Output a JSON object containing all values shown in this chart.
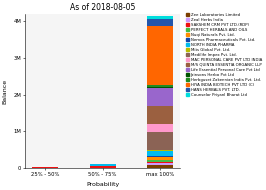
{
  "title": "As of 2018-08-05",
  "xlabel": "Probability",
  "ylabel": "Balance",
  "categories": [
    "25% - 50%",
    "50% - 75%",
    "max 100%"
  ],
  "series": [
    {
      "name": "Zee Laboratories Limited",
      "color": "#7B3F00",
      "values": [
        0,
        0,
        100000
      ]
    },
    {
      "name": "Zeal Herbs India",
      "color": "#CC99FF",
      "values": [
        0,
        0,
        30000
      ]
    },
    {
      "name": "SAKSHEM CRM PVT LTD.(RDP)",
      "color": "#EE1111",
      "values": [
        30000,
        60000,
        50000
      ]
    },
    {
      "name": "PERFECT HERBALS AND OILS",
      "color": "#44BB44",
      "values": [
        0,
        0,
        40000
      ]
    },
    {
      "name": "Nuqi Naturals Pvt. Ltd.",
      "color": "#FF8C00",
      "values": [
        0,
        0,
        80000
      ]
    },
    {
      "name": "Nemos Pharmaceuticals Pvt. Ltd.",
      "color": "#1144AA",
      "values": [
        0,
        0,
        30000
      ]
    },
    {
      "name": "NORTH INDIA PHARMA",
      "color": "#00BBEE",
      "values": [
        0,
        50000,
        150000
      ]
    },
    {
      "name": "Mits Global Pvt. Ltd.",
      "color": "#BBBB00",
      "values": [
        0,
        0,
        15000
      ]
    },
    {
      "name": "Medilife Impex Pvt. Ltd.",
      "color": "#8B6355",
      "values": [
        0,
        0,
        500000
      ]
    },
    {
      "name": "MAC PERSONAL CARE PVT LTD INDIA",
      "color": "#FF99CC",
      "values": [
        0,
        0,
        200000
      ]
    },
    {
      "name": "M/S QUINTA ESSENTIA ORGANIC LLP",
      "color": "#9B6040",
      "values": [
        0,
        0,
        500000
      ]
    },
    {
      "name": "Life Essential Personal Care Pvt Ltd",
      "color": "#9966CC",
      "values": [
        0,
        0,
        500000
      ]
    },
    {
      "name": "Jainsons Herbo Pvt Ltd",
      "color": "#005500",
      "values": [
        0,
        0,
        20000
      ]
    },
    {
      "name": "Herbguset Zakennian India Pvt. Ltd.",
      "color": "#228B22",
      "values": [
        0,
        0,
        60000
      ]
    },
    {
      "name": "HIYA INDIA BIOTECH PVT LTD (C)",
      "color": "#FF6600",
      "values": [
        0,
        0,
        1600000
      ]
    },
    {
      "name": "HANS HERBALS PVT. LTD.",
      "color": "#2255AA",
      "values": [
        0,
        0,
        180000
      ]
    },
    {
      "name": "Counselor Priyanl Bharat Ltd",
      "color": "#00DDDD",
      "values": [
        0,
        0,
        80000
      ]
    }
  ],
  "ylim": [
    0,
    4200000
  ],
  "yticks": [
    0,
    1000000,
    2000000,
    3000000,
    4000000
  ],
  "ytick_labels": [
    "0",
    "1M",
    "2M",
    "3M",
    "4M"
  ],
  "bg_color": "#ffffff",
  "plot_bg_color": "#f5f5f5"
}
